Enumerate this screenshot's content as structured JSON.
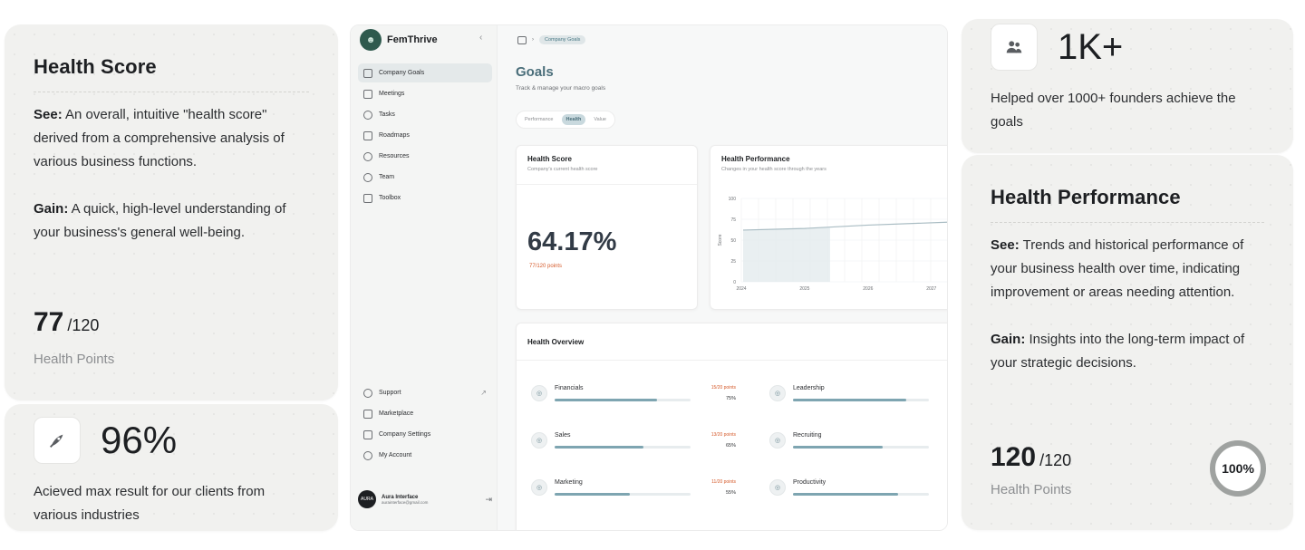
{
  "left": {
    "health_card": {
      "title": "Health Score",
      "see_label": "See:",
      "see_text": " An overall, intuitive \"health score\" derived from a comprehensive analysis of various business functions.",
      "gain_label": "Gain:",
      "gain_text": " A quick, high-level understanding of your business's general well-being.",
      "score": "77",
      "score_total": "/120",
      "points_label": "Health Points"
    },
    "stat_card": {
      "value": "96%",
      "description": "Acieved max result for our clients from various industries",
      "icon": "rocket-icon"
    }
  },
  "app": {
    "brand": "FemThrive",
    "nav": [
      {
        "label": "Company Goals",
        "icon": "target-icon",
        "active": true
      },
      {
        "label": "Meetings",
        "icon": "chat-icon",
        "active": false
      },
      {
        "label": "Tasks",
        "icon": "layers-icon",
        "active": false
      },
      {
        "label": "Roadmaps",
        "icon": "roadmap-icon",
        "active": false
      },
      {
        "label": "Resources",
        "icon": "pin-icon",
        "active": false
      },
      {
        "label": "Team",
        "icon": "team-icon",
        "active": false
      },
      {
        "label": "Toolbox",
        "icon": "tools-icon",
        "active": false
      }
    ],
    "bottom_nav": [
      {
        "label": "Support",
        "icon": "help-icon"
      },
      {
        "label": "Marketplace",
        "icon": "store-icon"
      },
      {
        "label": "Company Settings",
        "icon": "settings-icon"
      },
      {
        "label": "My Account",
        "icon": "gear-icon"
      }
    ],
    "user": {
      "name": "Aura Interface",
      "email": "aurainterface@gmail.com",
      "avatar_text": "AURA"
    },
    "breadcrumb": "Company Goals",
    "page_title": "Goals",
    "page_subtitle": "Track & manage your macro goals",
    "tabs": [
      {
        "label": "Performance",
        "active": false
      },
      {
        "label": "Health",
        "active": true
      },
      {
        "label": "Value",
        "active": false
      }
    ],
    "health_score": {
      "title": "Health Score",
      "subtitle": "Company's current health score",
      "value": "64.17%",
      "points": "77/120 points"
    },
    "health_performance": {
      "title": "Health Performance",
      "subtitle": "Changes in your health score through the years",
      "ylabel": "Score"
    },
    "overview": {
      "title": "Health Overview",
      "items": [
        {
          "name": "Financials",
          "points": "15/20 points",
          "percent": "75%",
          "fill": 0.75,
          "icon": "wallet-icon"
        },
        {
          "name": "Leadership",
          "points": "",
          "percent": "",
          "fill": 0.83,
          "icon": "leader-icon"
        },
        {
          "name": "Sales",
          "points": "13/20 points",
          "percent": "65%",
          "fill": 0.65,
          "icon": "sales-icon"
        },
        {
          "name": "Recruiting",
          "points": "",
          "percent": "",
          "fill": 0.66,
          "icon": "recruit-icon"
        },
        {
          "name": "Marketing",
          "points": "11/20 points",
          "percent": "55%",
          "fill": 0.55,
          "icon": "megaphone-icon"
        },
        {
          "name": "Productivity",
          "points": "",
          "percent": "",
          "fill": 0.77,
          "icon": "productivity-icon"
        }
      ]
    }
  },
  "chart_data": {
    "type": "line",
    "title": "",
    "xlabel": "",
    "ylabel": "Score",
    "x": [
      "2024",
      "2025",
      "2026",
      "2027"
    ],
    "yticks": [
      "0",
      "25",
      "50",
      "75",
      "100"
    ],
    "ylim": [
      0,
      100
    ],
    "series": [
      {
        "values": [
          62,
          64,
          68,
          72
        ]
      }
    ]
  },
  "right": {
    "stat_card": {
      "value": "1K+",
      "description": "Helped over 1000+ founders achieve the goals",
      "icon": "users-icon"
    },
    "perf_card": {
      "title": "Health Performance",
      "see_label": "See:",
      "see_text": " Trends and historical performance of your business health over time, indicating improvement or areas needing attention.",
      "gain_label": "Gain:",
      "gain_text": " Insights into the long-term impact of your strategic decisions.",
      "score": "120",
      "score_total": "/120",
      "points_label": "Health Points",
      "ring_label": "100%",
      "ring_value": 1.0
    }
  },
  "colors": {
    "accent": "#7ea5b1",
    "title_teal": "#4a6e7a",
    "points_orange": "#d55a2a",
    "card_bg": "#f1f1ef"
  }
}
